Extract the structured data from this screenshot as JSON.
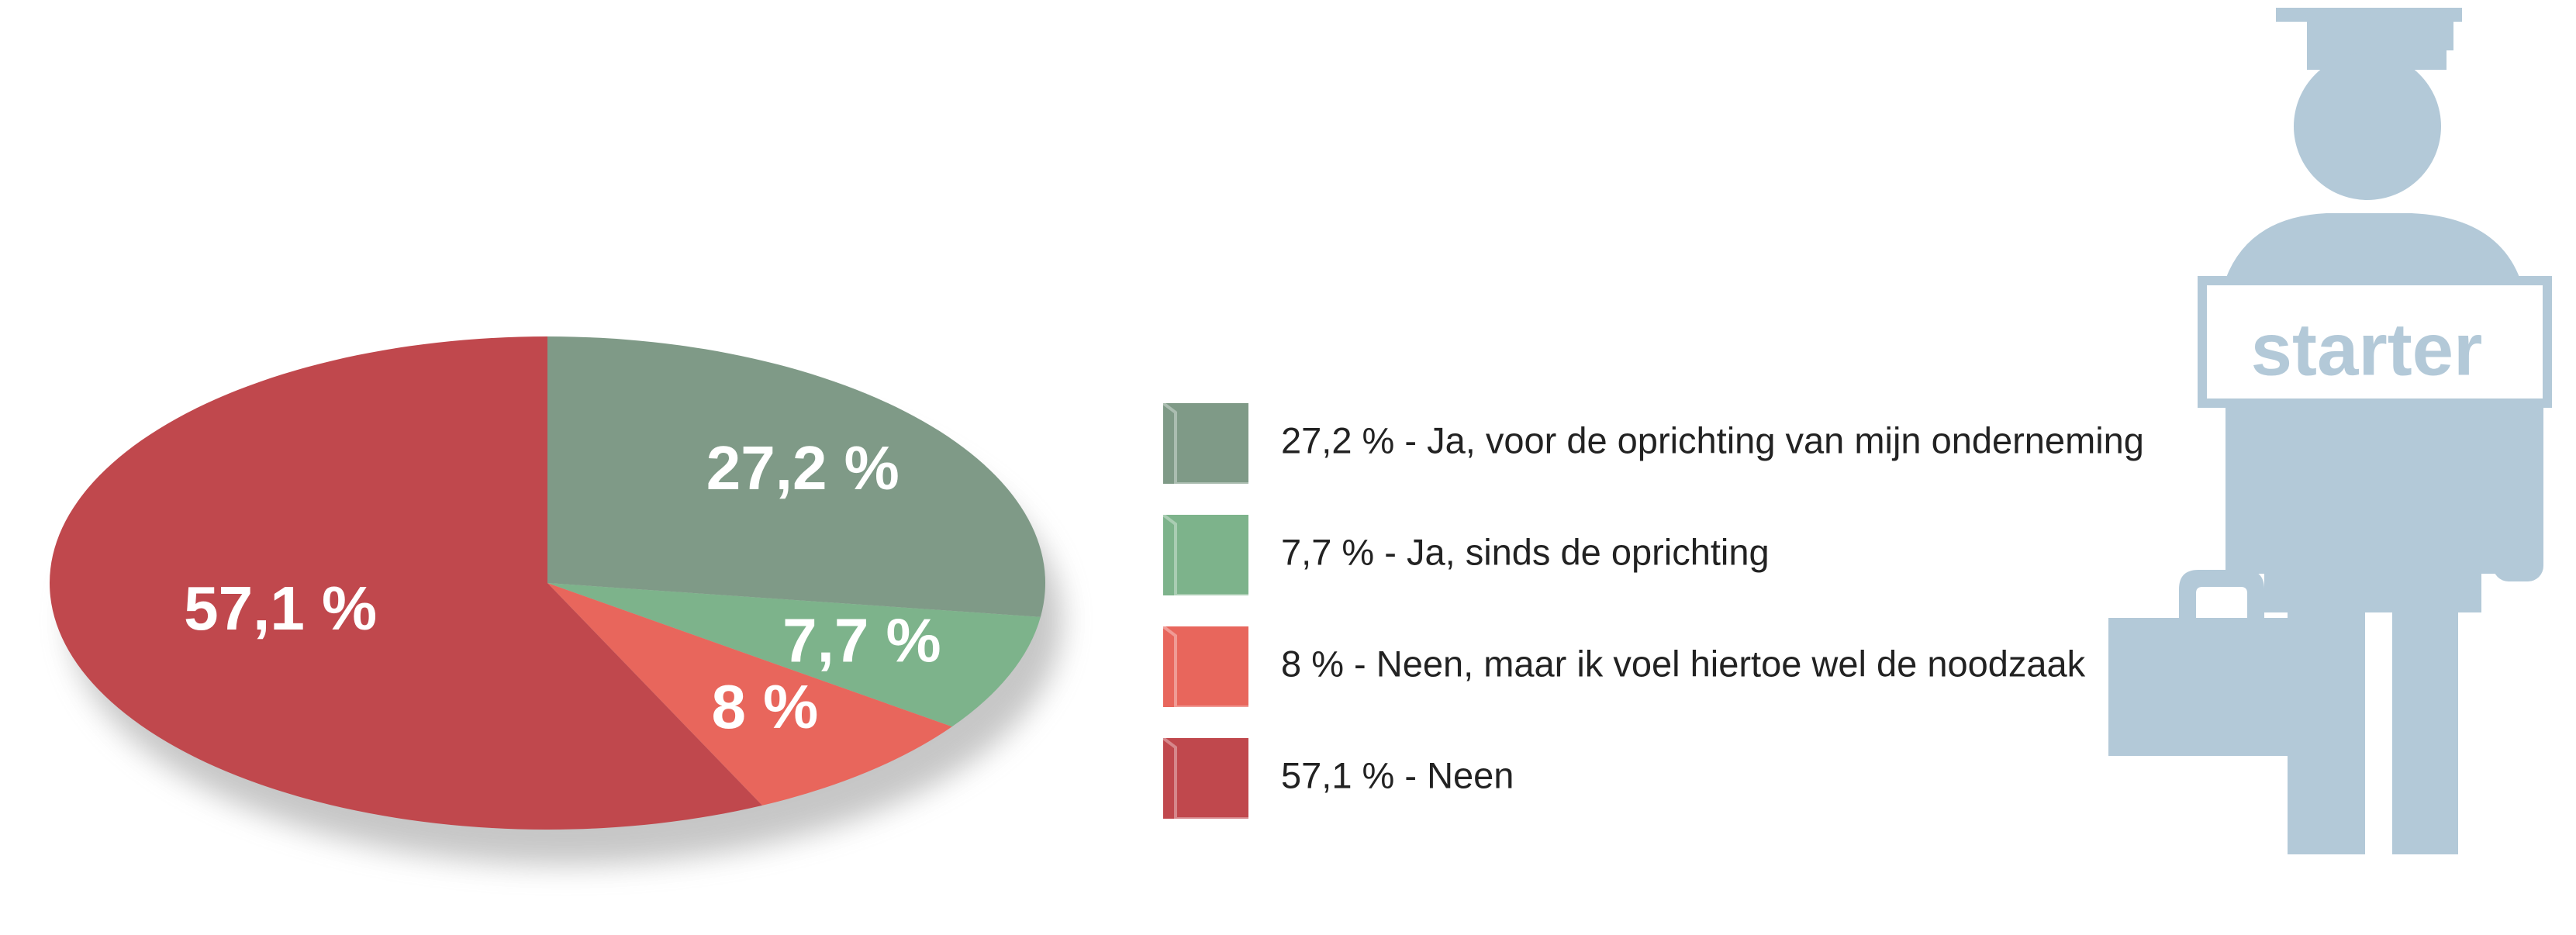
{
  "chart_data": {
    "type": "pie",
    "categories": [
      "27,2 % - Ja, voor de oprichting van mijn onderneming",
      "7,7 % - Ja, sinds de oprichting",
      "8 % - Neen, maar ik voel hiertoe wel de noodzaak",
      "57,1 % - Neen"
    ],
    "values": [
      27.2,
      7.7,
      8,
      57.1
    ],
    "value_labels": [
      "27,2 %",
      "7,7 %",
      "8 %",
      "57,1 %"
    ],
    "colors": [
      "#7f9a87",
      "#7db38b",
      "#e8665c",
      "#c0484d"
    ],
    "annotations": [
      "starter"
    ]
  }
}
